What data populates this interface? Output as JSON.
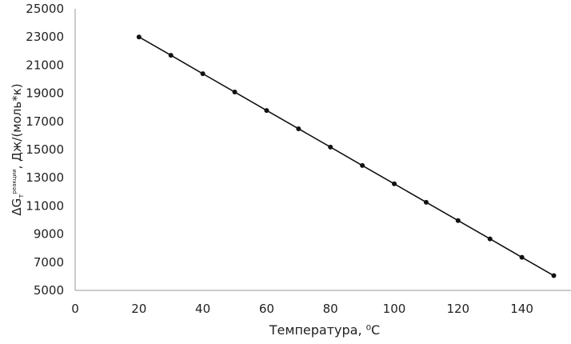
{
  "chart_data": {
    "type": "line",
    "title": "",
    "xlabel": "Температура, ⁰С",
    "ylabel": {
      "main": "ΔG",
      "subscript": "т",
      "superscript": "реакции",
      "suffix": ", Дж/(моль*к)"
    },
    "xlim": [
      0,
      160
    ],
    "ylim": [
      5000,
      25000
    ],
    "xticks": [
      0,
      20,
      40,
      60,
      80,
      100,
      120,
      140
    ],
    "yticks": [
      5000,
      7000,
      9000,
      11000,
      13000,
      15000,
      17000,
      19000,
      21000,
      23000,
      25000
    ],
    "grid": false,
    "markers": true,
    "line_color": "#111111",
    "series": [
      {
        "x": [
          20,
          30,
          40,
          50,
          60,
          70,
          80,
          90,
          100,
          110,
          120,
          130,
          140,
          150
        ],
        "y": [
          23000,
          21700,
          20390,
          19090,
          17780,
          16480,
          15180,
          13870,
          12570,
          11260,
          9960,
          8660,
          7350,
          6050
        ]
      }
    ]
  }
}
